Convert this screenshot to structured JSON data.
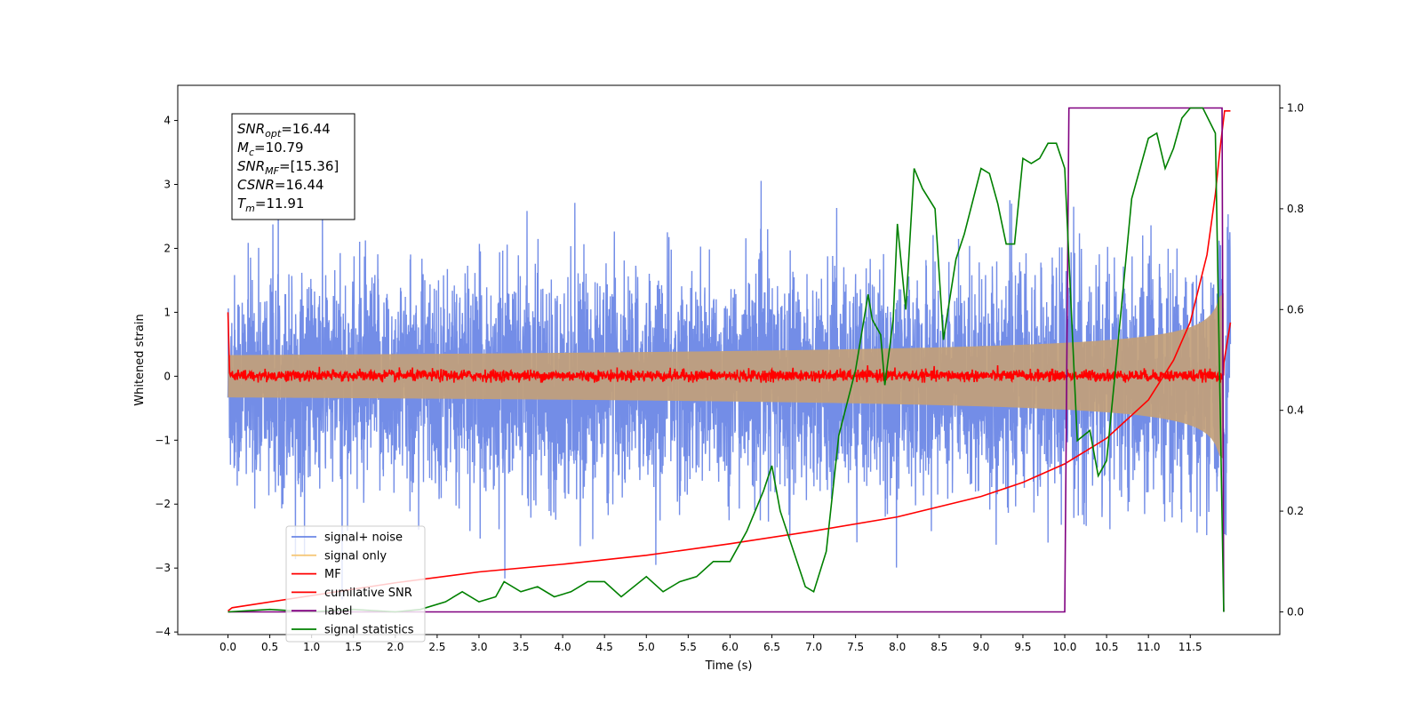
{
  "chart_data": {
    "type": "line",
    "xlabel": "Time (s)",
    "ylabel": "Whitened strain",
    "x_ticks": [
      "0.0",
      "0.5",
      "1.0",
      "1.5",
      "2.0",
      "2.5",
      "3.0",
      "3.5",
      "4.0",
      "4.5",
      "5.0",
      "5.5",
      "6.0",
      "6.5",
      "7.0",
      "7.5",
      "8.0",
      "8.5",
      "9.0",
      "9.5",
      "10.0",
      "10.5",
      "11.0",
      "11.5"
    ],
    "xlim": [
      -0.6,
      12.57
    ],
    "y_ticks": [
      4,
      3,
      2,
      1,
      0,
      -1,
      -2,
      -3,
      -4
    ],
    "ylim": [
      -4.04,
      4.55
    ],
    "y2_ticks": [
      "1.0",
      "0.8",
      "0.6",
      "0.4",
      "0.2",
      "0.0"
    ],
    "y2lim": [
      -0.045,
      1.045
    ],
    "t_start": 0.0,
    "t_end": 11.98,
    "merger_time": 11.91,
    "annotation": [
      {
        "name": "SNR",
        "sub": "opt",
        "value": "=16.44"
      },
      {
        "name": "M",
        "sub": "c",
        "value": "=10.79"
      },
      {
        "name": "SNR",
        "sub": "MF",
        "value": "=[15.36]"
      },
      {
        "name": "CSNR",
        "sub": "",
        "value": "=16.44"
      },
      {
        "name": "T",
        "sub": "m",
        "value": "=11.91"
      }
    ],
    "series": [
      {
        "name": "signal+ noise",
        "color": "#6b87e6",
        "kind": "noise",
        "noise_std": 0.82
      },
      {
        "name": "signal only",
        "color": "#f5c87a",
        "kind": "chirp",
        "amplitude_at_merger": 1.3
      },
      {
        "name": "MF",
        "color": "#ff0000",
        "kind": "matched-filter"
      },
      {
        "name": "cumilative SNR",
        "color": "#ff0000",
        "kind": "cumulative",
        "x": [
          0.0,
          0.05,
          1.0,
          2.0,
          3.0,
          4.0,
          5.0,
          6.0,
          7.0,
          8.0,
          9.0,
          9.5,
          10.0,
          10.5,
          11.0,
          11.3,
          11.5,
          11.7,
          11.8,
          11.86,
          11.91,
          11.98
        ],
        "y": [
          -3.67,
          -3.62,
          -3.43,
          -3.23,
          -3.06,
          -2.94,
          -2.8,
          -2.62,
          -2.42,
          -2.2,
          -1.88,
          -1.66,
          -1.37,
          -0.97,
          -0.37,
          0.25,
          0.85,
          1.9,
          2.85,
          3.6,
          4.15,
          4.15
        ]
      },
      {
        "name": "label",
        "color": "#800080",
        "kind": "step",
        "axis": "right",
        "x": [
          0.0,
          10.0,
          10.05,
          11.88,
          11.9
        ],
        "y": [
          0.0,
          0.0,
          1.0,
          1.0,
          0.0
        ]
      },
      {
        "name": "signal statistics",
        "color": "#008000",
        "kind": "line",
        "axis": "right",
        "x": [
          0.0,
          0.5,
          1.0,
          1.5,
          2.0,
          2.3,
          2.6,
          2.8,
          3.0,
          3.2,
          3.3,
          3.5,
          3.7,
          3.9,
          4.1,
          4.3,
          4.5,
          4.7,
          5.0,
          5.2,
          5.4,
          5.6,
          5.8,
          6.0,
          6.2,
          6.4,
          6.5,
          6.6,
          6.7,
          6.9,
          7.0,
          7.15,
          7.3,
          7.5,
          7.65,
          7.7,
          7.8,
          7.85,
          7.95,
          8.0,
          8.1,
          8.2,
          8.3,
          8.45,
          8.55,
          8.7,
          8.8,
          9.0,
          9.1,
          9.2,
          9.3,
          9.4,
          9.5,
          9.6,
          9.7,
          9.8,
          9.9,
          10.0,
          10.05,
          10.15,
          10.3,
          10.4,
          10.5,
          10.6,
          10.8,
          11.0,
          11.1,
          11.2,
          11.3,
          11.4,
          11.5,
          11.65,
          11.8,
          11.9
        ],
        "y": [
          0.0,
          0.005,
          0.0,
          0.005,
          0.0,
          0.005,
          0.02,
          0.04,
          0.02,
          0.03,
          0.06,
          0.04,
          0.05,
          0.03,
          0.04,
          0.06,
          0.06,
          0.03,
          0.07,
          0.04,
          0.06,
          0.07,
          0.1,
          0.1,
          0.16,
          0.24,
          0.29,
          0.2,
          0.15,
          0.05,
          0.04,
          0.12,
          0.35,
          0.48,
          0.63,
          0.58,
          0.55,
          0.45,
          0.58,
          0.77,
          0.6,
          0.88,
          0.84,
          0.8,
          0.54,
          0.7,
          0.75,
          0.88,
          0.87,
          0.81,
          0.73,
          0.73,
          0.9,
          0.89,
          0.9,
          0.93,
          0.93,
          0.88,
          0.7,
          0.34,
          0.36,
          0.27,
          0.3,
          0.47,
          0.82,
          0.94,
          0.95,
          0.88,
          0.92,
          0.98,
          1.0,
          1.0,
          0.95,
          0.0
        ]
      }
    ]
  }
}
